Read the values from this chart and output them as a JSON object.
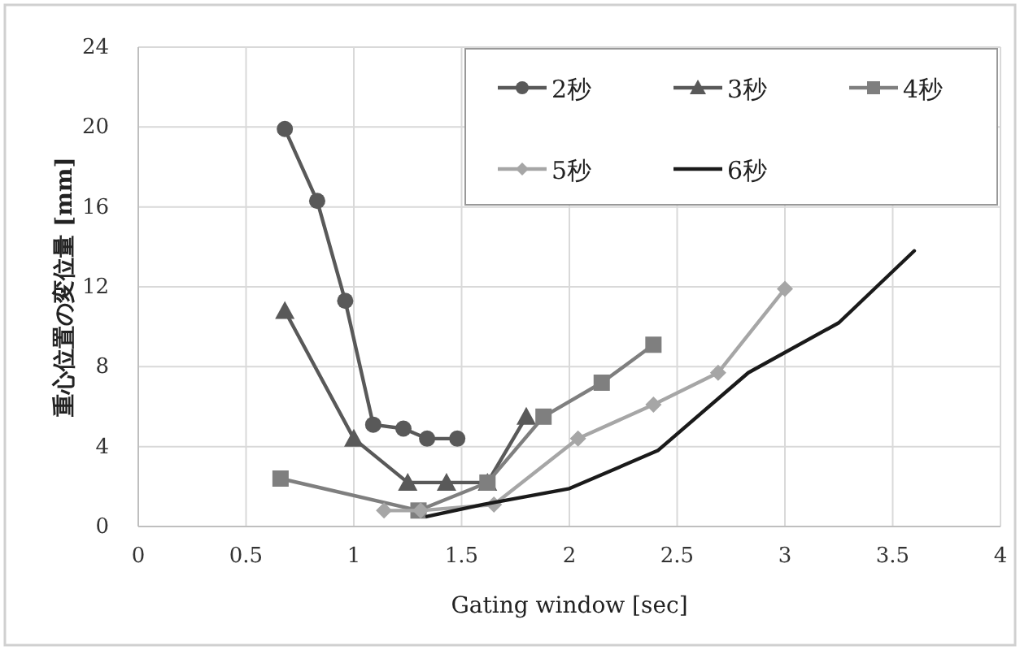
{
  "chart_data": {
    "type": "line",
    "xlabel": "Gating window [sec]",
    "ylabel": "重心位置の変位量 [mm]",
    "xlim": [
      0,
      4
    ],
    "xticks": [
      0,
      0.5,
      1,
      1.5,
      2,
      2.5,
      3,
      3.5,
      4
    ],
    "ylim": [
      0,
      24
    ],
    "yticks": [
      0,
      4,
      8,
      12,
      16,
      20,
      24
    ],
    "grid": true,
    "legend": "top right",
    "series": [
      {
        "name": "2秒",
        "color": "#595959",
        "marker": "circle",
        "x": [
          0.68,
          0.83,
          0.96,
          1.09,
          1.23,
          1.34,
          1.48
        ],
        "values": [
          19.9,
          16.3,
          11.3,
          5.1,
          4.9,
          4.4,
          4.4
        ]
      },
      {
        "name": "3秒",
        "color": "#595959",
        "marker": "triangle",
        "x": [
          0.68,
          1.0,
          1.25,
          1.43,
          1.62,
          1.8
        ],
        "values": [
          10.8,
          4.4,
          2.2,
          2.2,
          2.2,
          5.5
        ]
      },
      {
        "name": "4秒",
        "color": "#7f7f7f",
        "marker": "square",
        "x": [
          0.66,
          1.3,
          1.62,
          1.88,
          2.15,
          2.39
        ],
        "values": [
          2.4,
          0.8,
          2.2,
          5.5,
          7.2,
          9.1
        ]
      },
      {
        "name": "5秒",
        "color": "#a6a6a6",
        "marker": "diamond",
        "x": [
          1.14,
          1.31,
          1.65,
          2.04,
          2.39,
          2.69,
          3.0
        ],
        "values": [
          0.8,
          0.8,
          1.1,
          4.4,
          6.1,
          7.7,
          11.9
        ]
      },
      {
        "name": "6秒",
        "color": "#1a1a1a",
        "marker": "none",
        "x": [
          1.34,
          1.6,
          2.0,
          2.41,
          2.83,
          3.25,
          3.6
        ],
        "values": [
          0.5,
          1.1,
          1.9,
          3.8,
          7.7,
          10.2,
          13.8
        ]
      }
    ]
  }
}
